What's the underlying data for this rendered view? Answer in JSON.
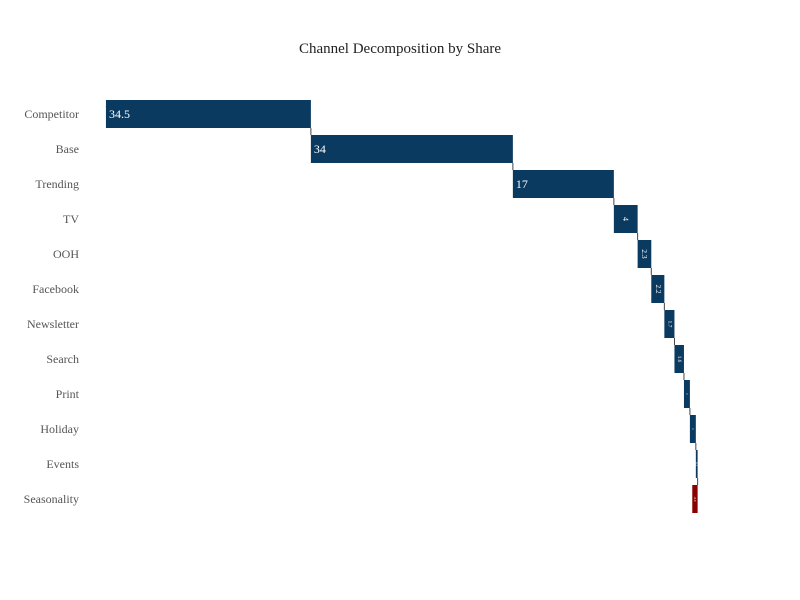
{
  "chart_data": {
    "type": "waterfall",
    "orientation": "horizontal",
    "title": "Channel Decomposition by Share",
    "xlabel": "",
    "ylabel": "",
    "categories": [
      "Competitor",
      "Base",
      "Trending",
      "TV",
      "OOH",
      "Facebook",
      "Newsletter",
      "Search",
      "Print",
      "Holiday",
      "Events",
      "Seasonality"
    ],
    "values": [
      34.5,
      34,
      17,
      4,
      2.3,
      2.2,
      1.7,
      1.6,
      1,
      1,
      0.3,
      -0.9
    ],
    "labels": [
      "34.5",
      "34",
      "17",
      "4",
      "2.3",
      "2.2",
      "1.7",
      "1.6",
      "1",
      "1",
      "0.3",
      "-0.9"
    ],
    "xlim": [
      -1,
      100
    ],
    "grid": false,
    "legend": "none",
    "colors": {
      "increase": "#0b3a60",
      "decrease": "#8b0000",
      "connector": "#444444"
    }
  }
}
